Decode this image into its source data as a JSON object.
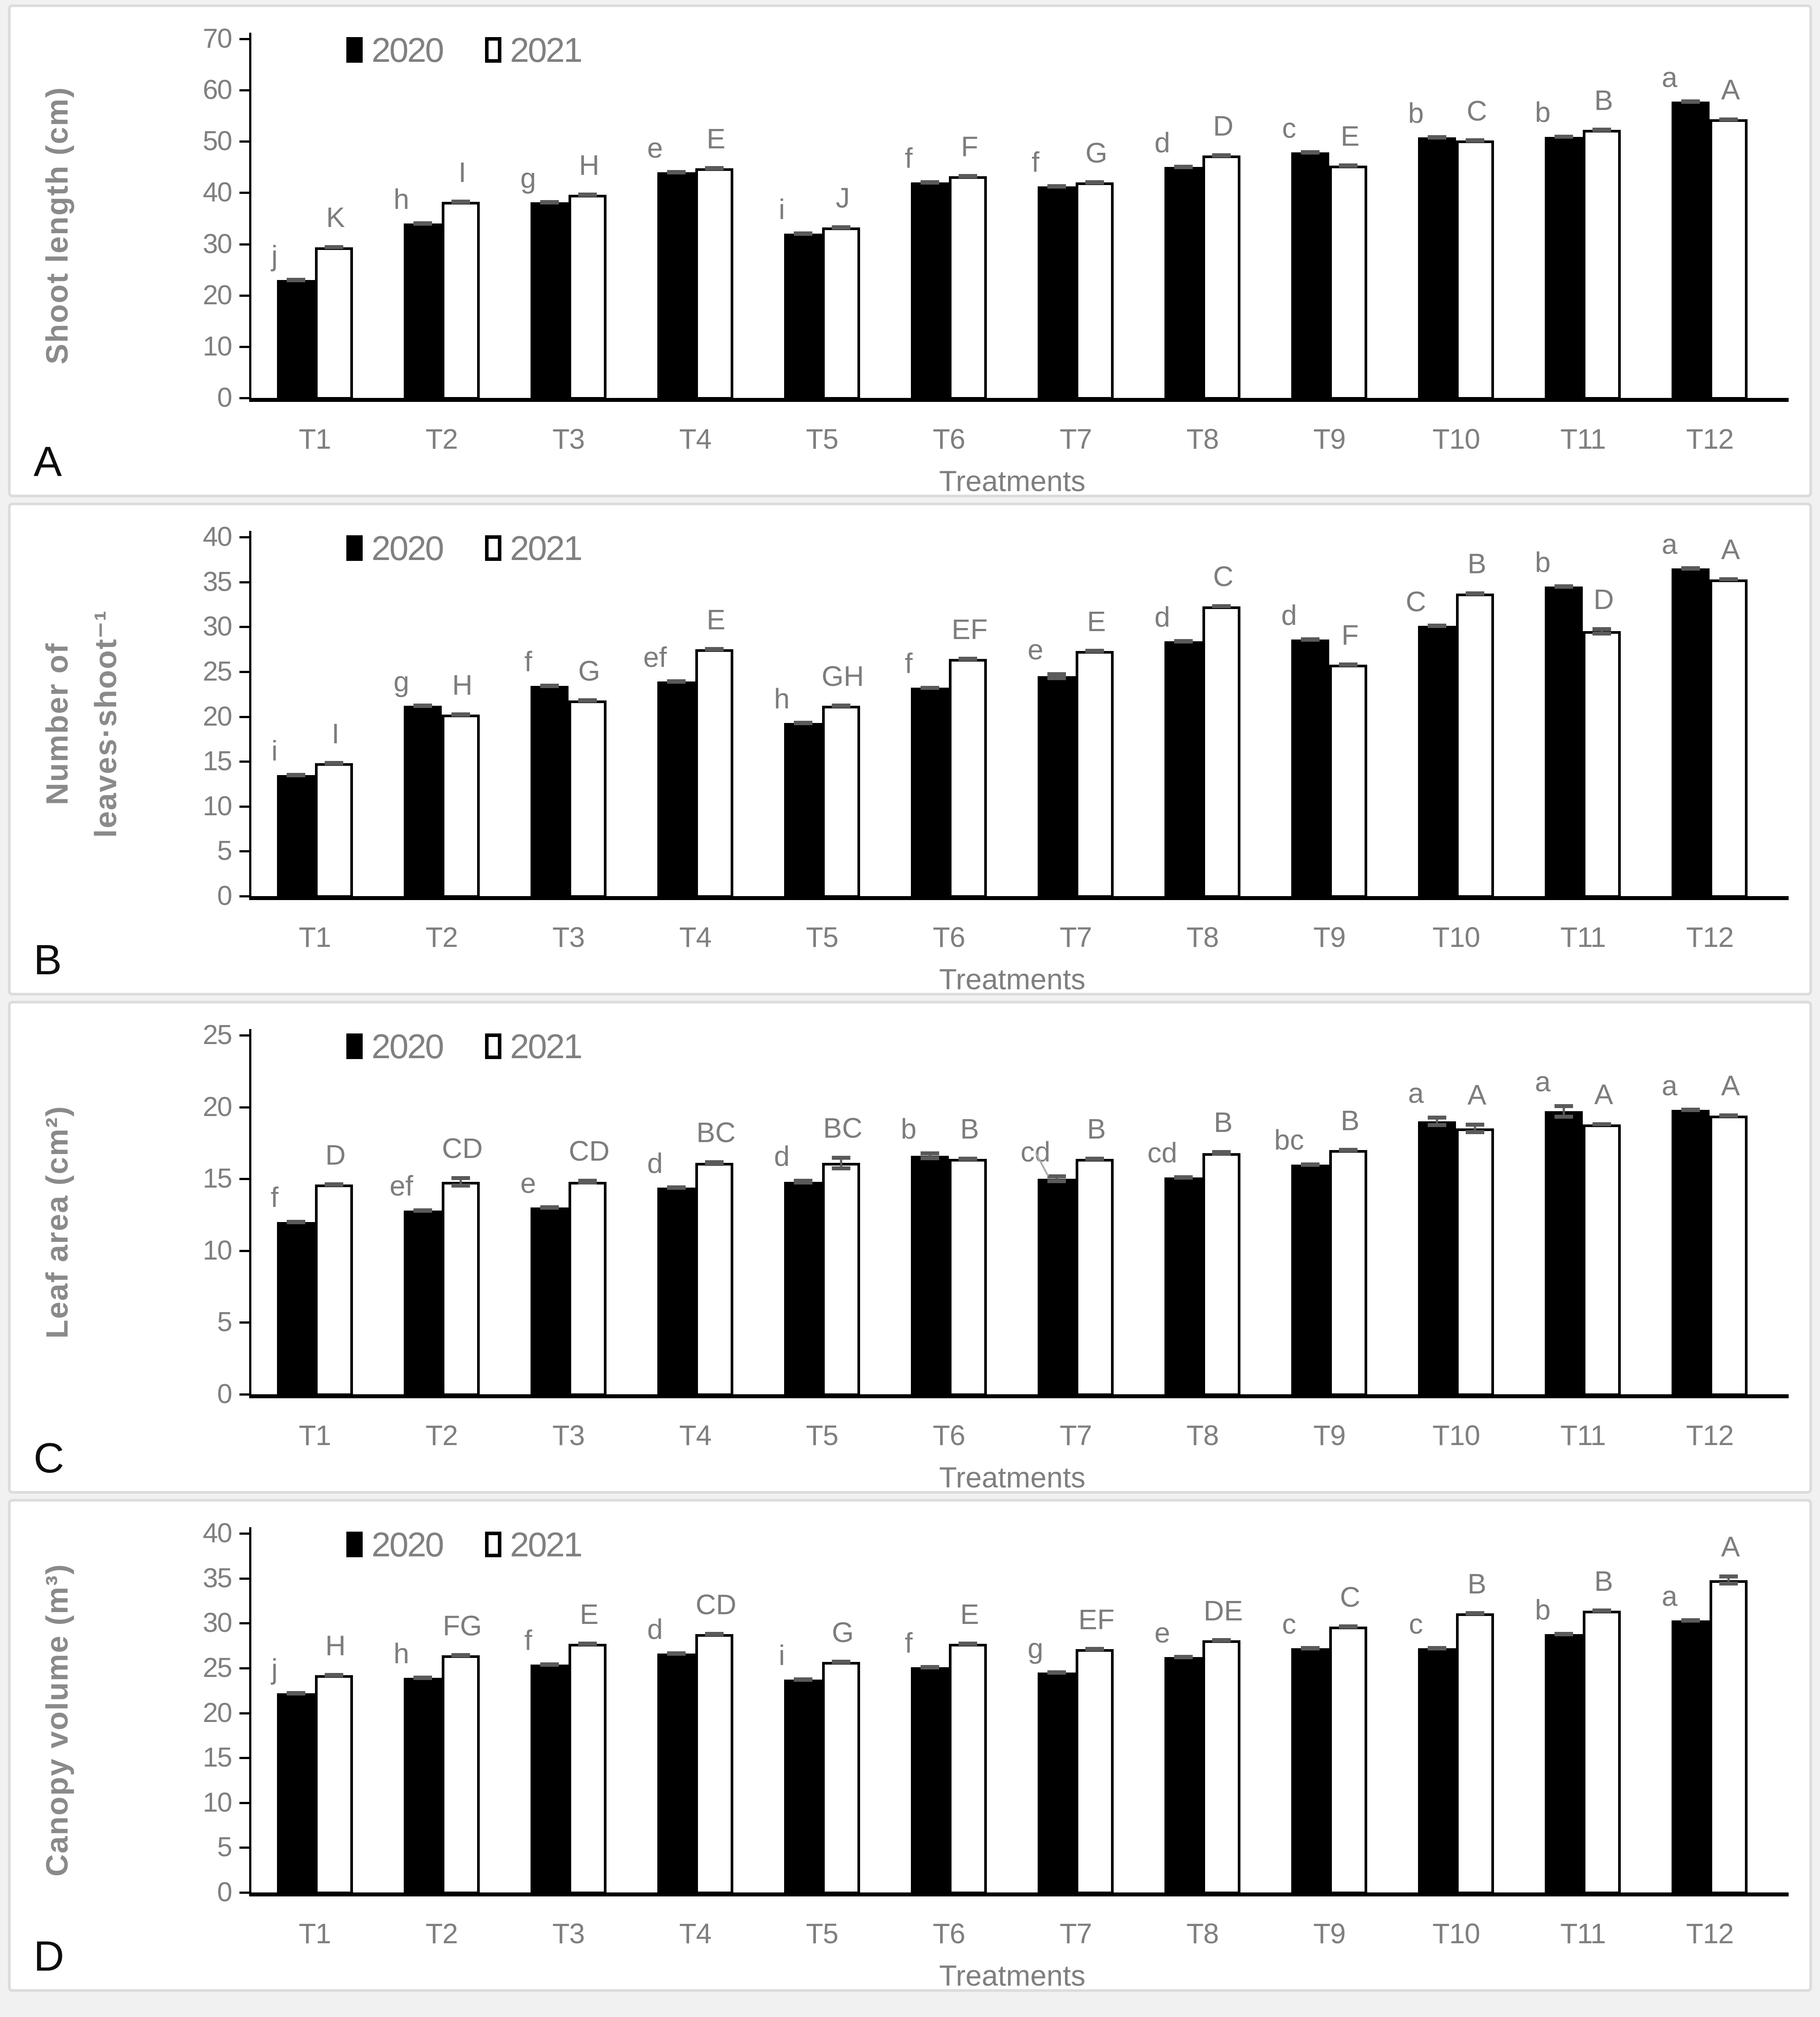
{
  "figure": {
    "xlabel": "Treatments",
    "legend": [
      {
        "label": "2020",
        "swatch": "filled-black-square"
      },
      {
        "label": "2021",
        "swatch": "open-white-square"
      }
    ]
  },
  "colors": {
    "bar_2020": "#000000",
    "bar_2021": "#ffffff",
    "bar_border": "#000000",
    "axis": "#000000",
    "text_gray": "#7f7f7f",
    "sig_letter_gray": "#7d7d7d",
    "error_bar": "#5a5a5a",
    "panel_border": "#dcdcdc",
    "panel_letter": "#0d0d0d"
  },
  "chart_data": [
    {
      "type": "bar",
      "panel_letter": "A",
      "title": "",
      "ylabel": "Shoot length (cm)",
      "xlabel": "Treatments",
      "ylim": [
        0,
        70
      ],
      "yticks": [
        0,
        10,
        20,
        30,
        40,
        50,
        60,
        70
      ],
      "grid": false,
      "legend_position": "top-left-inside",
      "categories": [
        "T1",
        "T2",
        "T3",
        "T4",
        "T5",
        "T6",
        "T7",
        "T8",
        "T9",
        "T10",
        "T11",
        "T12"
      ],
      "series": [
        {
          "name": "2020",
          "values": [
            23.0,
            34.0,
            38.1,
            44.0,
            32.0,
            42.0,
            41.2,
            45.0,
            47.9,
            50.8,
            50.9,
            57.8
          ],
          "errors": [
            0.3,
            0.3,
            0.3,
            0.3,
            0.3,
            0.3,
            0.3,
            0.3,
            0.3,
            0.3,
            0.4,
            0.3
          ],
          "sig_letters": [
            "j",
            "h",
            "g",
            "e",
            "i",
            "f",
            "f",
            "d",
            "c",
            "b",
            "b",
            "a"
          ]
        },
        {
          "name": "2021",
          "values": [
            29.4,
            38.2,
            39.6,
            44.8,
            33.2,
            43.2,
            42.0,
            47.3,
            45.3,
            50.2,
            52.3,
            54.3
          ],
          "errors": [
            0.4,
            0.3,
            0.3,
            0.3,
            0.3,
            0.3,
            0.3,
            0.3,
            0.3,
            0.3,
            0.3,
            0.4
          ],
          "sig_letters": [
            "K",
            "I",
            "H",
            "E",
            "J",
            "F",
            "G",
            "D",
            "E",
            "C",
            "B",
            "A"
          ]
        }
      ]
    },
    {
      "type": "bar",
      "panel_letter": "B",
      "title": "",
      "ylabel": "Number of leaves·shoot⁻¹",
      "xlabel": "Treatments",
      "ylim": [
        0,
        40
      ],
      "yticks": [
        0,
        5,
        10,
        15,
        20,
        25,
        30,
        35,
        40
      ],
      "grid": false,
      "legend_position": "top-left-inside",
      "categories": [
        "T1",
        "T2",
        "T3",
        "T4",
        "T5",
        "T6",
        "T7",
        "T8",
        "T9",
        "T10",
        "T11",
        "T12"
      ],
      "series": [
        {
          "name": "2020",
          "values": [
            13.5,
            21.2,
            23.4,
            23.9,
            19.3,
            23.2,
            24.5,
            28.4,
            28.6,
            30.1,
            34.5,
            36.5
          ],
          "errors": [
            0.2,
            0.2,
            0.2,
            0.2,
            0.2,
            0.2,
            0.45,
            0.2,
            0.2,
            0.2,
            0.2,
            0.2
          ],
          "sig_letters": [
            "i",
            "g",
            "f",
            "ef",
            "h",
            "f",
            "e",
            "d",
            "d",
            "C",
            "b",
            "a"
          ]
        },
        {
          "name": "2021",
          "values": [
            14.8,
            20.2,
            21.8,
            27.5,
            21.2,
            26.4,
            27.3,
            32.3,
            25.8,
            33.7,
            29.5,
            35.3
          ],
          "errors": [
            0.2,
            0.2,
            0.2,
            0.2,
            0.2,
            0.2,
            0.2,
            0.2,
            0.2,
            0.25,
            0.45,
            0.2
          ],
          "sig_letters": [
            "I",
            "H",
            "G",
            "E",
            "GH",
            "EF",
            "E",
            "C",
            "F",
            "B",
            "D",
            "A"
          ]
        }
      ]
    },
    {
      "type": "bar",
      "panel_letter": "C",
      "title": "",
      "ylabel": "Leaf area (cm²)",
      "xlabel": "Treatments",
      "ylim": [
        0,
        25
      ],
      "yticks": [
        0,
        5,
        10,
        15,
        20,
        25
      ],
      "grid": false,
      "legend_position": "top-left-inside",
      "leader_line": {
        "series": 0,
        "index": 6
      },
      "categories": [
        "T1",
        "T2",
        "T3",
        "T4",
        "T5",
        "T6",
        "T7",
        "T8",
        "T9",
        "T10",
        "T11",
        "T12"
      ],
      "series": [
        {
          "name": "2020",
          "values": [
            12.0,
            12.8,
            13.0,
            14.4,
            14.8,
            16.6,
            15.0,
            15.1,
            16.0,
            19.0,
            19.7,
            19.8
          ],
          "errors": [
            0.15,
            0.15,
            0.1,
            0.1,
            0.2,
            0.3,
            0.3,
            0.15,
            0.15,
            0.4,
            0.5,
            0.1
          ],
          "sig_letters": [
            "f",
            "ef",
            "e",
            "d",
            "d",
            "b",
            "cd",
            "cd",
            "bc",
            "a",
            "a",
            "a"
          ]
        },
        {
          "name": "2021",
          "values": [
            14.6,
            14.8,
            14.8,
            16.1,
            16.1,
            16.4,
            16.4,
            16.8,
            17.0,
            18.5,
            18.8,
            19.4
          ],
          "errors": [
            0.1,
            0.4,
            0.2,
            0.2,
            0.5,
            0.15,
            0.15,
            0.2,
            0.1,
            0.4,
            0.15,
            0.15
          ],
          "sig_letters": [
            "D",
            "CD",
            "CD",
            "BC",
            "BC",
            "B",
            "B",
            "B",
            "B",
            "A",
            "A",
            "A"
          ]
        }
      ]
    },
    {
      "type": "bar",
      "panel_letter": "D",
      "title": "",
      "ylabel": "Canopy volume (m³)",
      "xlabel": "Treatments",
      "ylim": [
        0,
        40
      ],
      "yticks": [
        0,
        5,
        10,
        15,
        20,
        25,
        30,
        35,
        40
      ],
      "grid": false,
      "legend_position": "top-left-inside",
      "categories": [
        "T1",
        "T2",
        "T3",
        "T4",
        "T5",
        "T6",
        "T7",
        "T8",
        "T9",
        "T10",
        "T11",
        "T12"
      ],
      "series": [
        {
          "name": "2020",
          "values": [
            22.2,
            23.9,
            25.4,
            26.6,
            23.7,
            25.1,
            24.5,
            26.2,
            27.2,
            27.2,
            28.8,
            30.3
          ],
          "errors": [
            0.15,
            0.15,
            0.15,
            0.15,
            0.15,
            0.15,
            0.15,
            0.15,
            0.15,
            0.15,
            0.15,
            0.15
          ],
          "sig_letters": [
            "j",
            "h",
            "f",
            "d",
            "i",
            "f",
            "g",
            "e",
            "c",
            "c",
            "b",
            "a"
          ]
        },
        {
          "name": "2021",
          "values": [
            24.2,
            26.4,
            27.7,
            28.8,
            25.7,
            27.7,
            27.1,
            28.1,
            29.6,
            31.1,
            31.4,
            34.8
          ],
          "errors": [
            0.15,
            0.15,
            0.15,
            0.15,
            0.15,
            0.15,
            0.15,
            0.15,
            0.15,
            0.2,
            0.2,
            0.6
          ],
          "sig_letters": [
            "H",
            "FG",
            "E",
            "CD",
            "G",
            "E",
            "EF",
            "DE",
            "C",
            "B",
            "B",
            "A"
          ]
        }
      ]
    }
  ]
}
